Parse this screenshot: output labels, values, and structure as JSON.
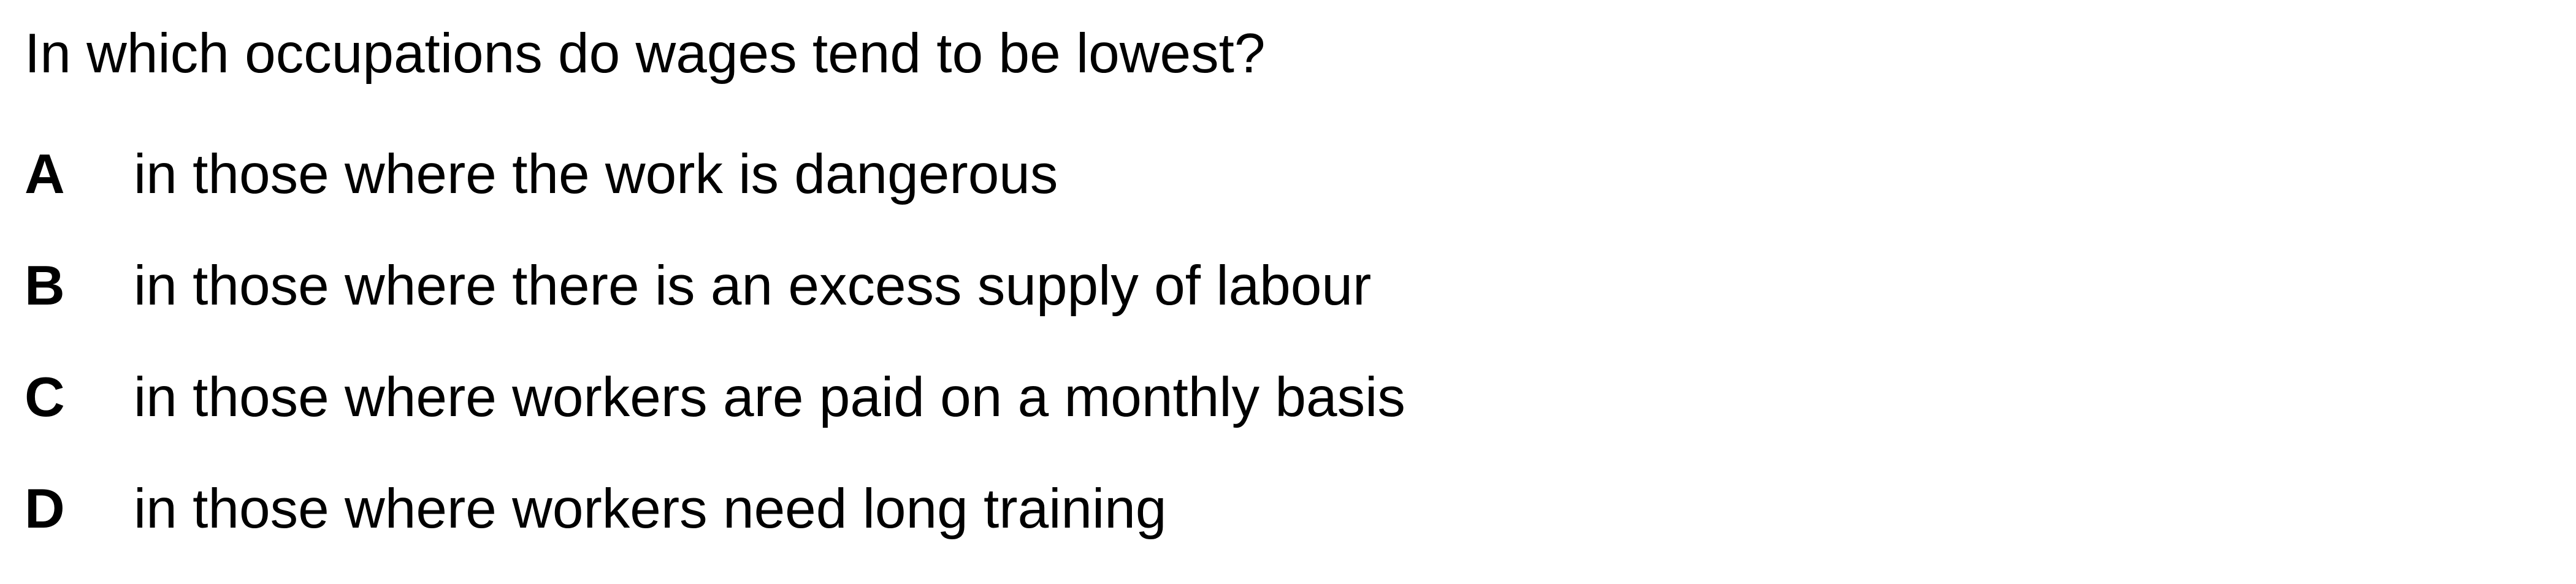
{
  "question": {
    "text": "In which occupations do wages tend to be lowest?"
  },
  "options": [
    {
      "letter": "A",
      "text": "in those where the work is dangerous"
    },
    {
      "letter": "B",
      "text": "in those where there is an excess supply of labour"
    },
    {
      "letter": "C",
      "text": "in those where workers are paid on a monthly basis"
    },
    {
      "letter": "D",
      "text": "in those where workers need long training"
    }
  ]
}
